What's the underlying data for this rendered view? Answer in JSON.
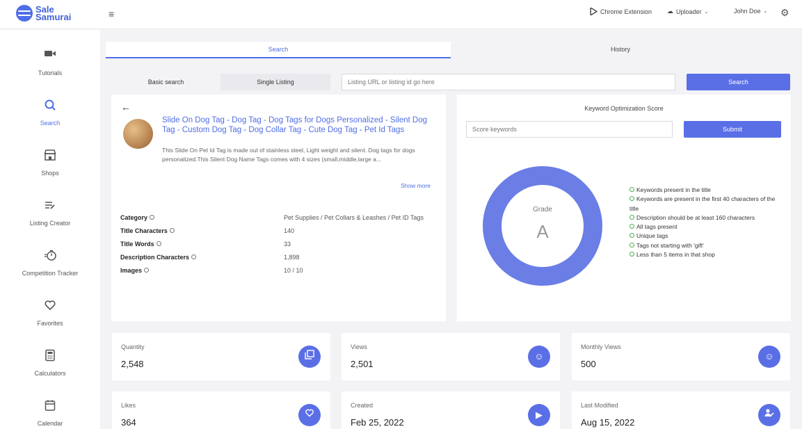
{
  "brand": {
    "line1": "Sale",
    "line2": "Samurai"
  },
  "topnav": {
    "chrome_extension": "Chrome Extension",
    "uploader": "Uploader",
    "user": "John Doe"
  },
  "sidebar": {
    "items": [
      {
        "label": "Tutorials",
        "icon": "video-camera-icon"
      },
      {
        "label": "Search",
        "icon": "search-icon"
      },
      {
        "label": "Shops",
        "icon": "shop-icon"
      },
      {
        "label": "Listing Creator",
        "icon": "list-edit-icon"
      },
      {
        "label": "Competition Tracker",
        "icon": "stopwatch-icon"
      },
      {
        "label": "Favorites",
        "icon": "heart-icon"
      },
      {
        "label": "Calculators",
        "icon": "calculator-icon"
      },
      {
        "label": "Calendar",
        "icon": "calendar-icon"
      }
    ]
  },
  "tabs": {
    "search": "Search",
    "history": "History"
  },
  "subtabs": {
    "basic": "Basic search",
    "single": "Single Listing"
  },
  "search": {
    "placeholder": "Listing URL or listing id go here",
    "button": "Search"
  },
  "listing": {
    "title": "Slide On Dog Tag - Dog Tag - Dog Tags for Dogs Personalized - Silent Dog Tag - Custom Dog Tag - Dog Collar Tag - Cute Dog Tag - Pet Id Tags",
    "description": "This Slide On Pet Id Tag is made out of stainless steel, Light weight and silent. Dog tags for dogs personalized.This Silent Dog Name Tags comes with 4 sizes (small,middle,large a...",
    "show_more": "Show more",
    "attributes": [
      {
        "label": "Category",
        "value": "Pet Supplies / Pet Collars & Leashes / Pet ID Tags"
      },
      {
        "label": "Title Characters",
        "value": "140"
      },
      {
        "label": "Title Words",
        "value": "33"
      },
      {
        "label": "Description Characters",
        "value": "1,898"
      },
      {
        "label": "Images",
        "value": "10 / 10"
      }
    ]
  },
  "kos": {
    "title": "Keyword Optimization Score",
    "placeholder": "Score keywords",
    "submit": "Submit",
    "grade_label": "Grade",
    "grade": "A",
    "criteria": [
      "Keywords present in the title",
      "Keywords are present in the first 40 characters of the title",
      "Description should be at least 160 characters",
      "All tags present",
      "Unique tags",
      "Tags not starting with 'gift'",
      "Less than 5 items in that shop"
    ]
  },
  "stats": [
    {
      "label": "Quantity",
      "value": "2,548",
      "icon": "gallery-icon"
    },
    {
      "label": "Views",
      "value": "2,501",
      "icon": "smile-icon"
    },
    {
      "label": "Monthly Views",
      "value": "500",
      "icon": "smile-icon"
    },
    {
      "label": "Likes",
      "value": "364",
      "icon": "heart-icon"
    },
    {
      "label": "Created",
      "value": "Feb 25, 2022",
      "icon": "play-icon"
    },
    {
      "label": "Last Modified",
      "value": "Aug 15, 2022",
      "icon": "user-edit-icon"
    }
  ],
  "colors": {
    "accent": "#5a6fe6",
    "donut": "#6a7ee6",
    "check": "#4caf50"
  }
}
